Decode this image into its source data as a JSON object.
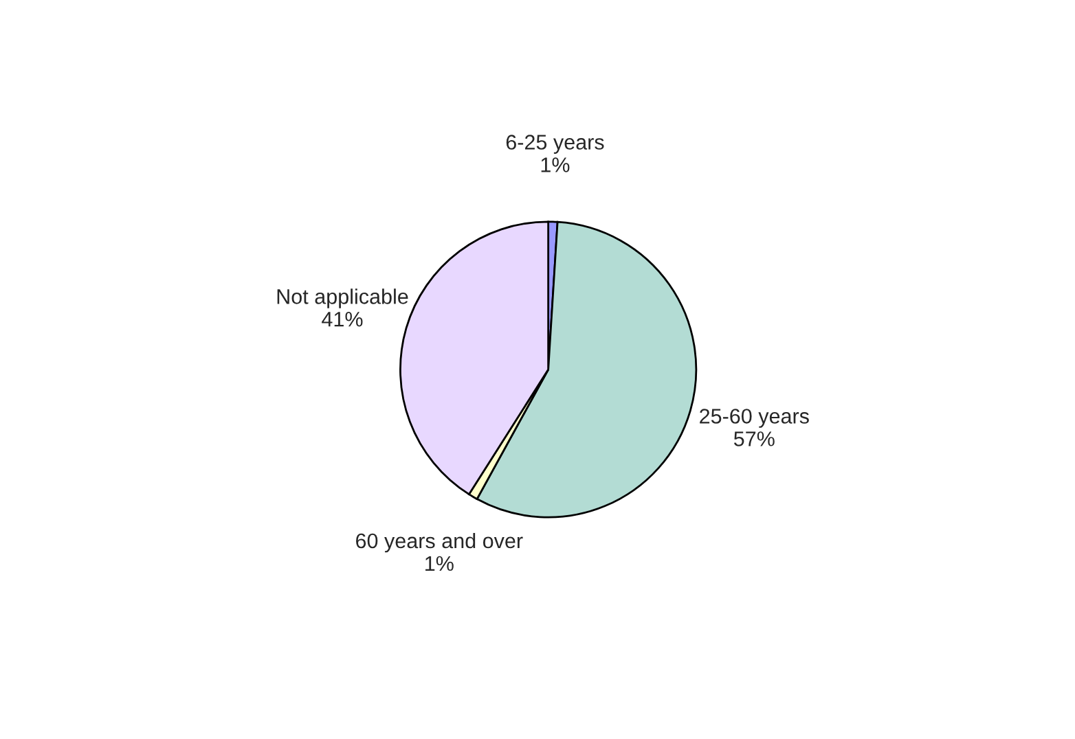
{
  "chart_data": {
    "type": "pie",
    "categories": [
      "6-25 years",
      "25-60 years",
      "60 years and over",
      "Not applicable"
    ],
    "values": [
      1,
      57,
      1,
      41
    ],
    "value_labels": [
      "1%",
      "57%",
      "1%",
      "41%"
    ],
    "colors": [
      "#9999ff",
      "#b3dcd4",
      "#ffffcc",
      "#e8d8ff"
    ],
    "legend": false
  }
}
